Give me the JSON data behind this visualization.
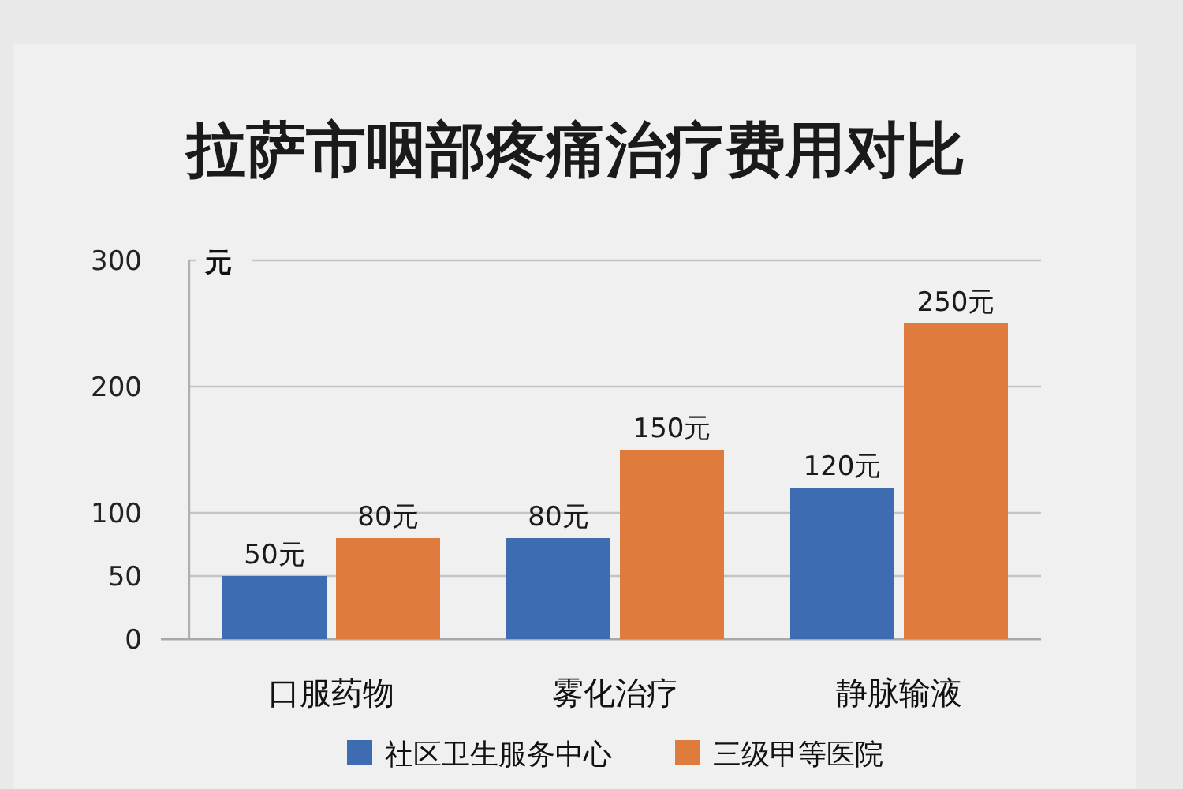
{
  "chart_data": {
    "type": "bar",
    "title": "拉萨市咽部疼痛治疗费用对比",
    "ylabel": "元",
    "categories": [
      "口服药物",
      "雾化治疗",
      "静脉输液"
    ],
    "series": [
      {
        "name": "社区卫生服务中心",
        "color": "#3d6db0",
        "values": [
          50,
          80,
          120
        ],
        "value_labels": [
          "50元",
          "80元",
          "120元"
        ]
      },
      {
        "name": "三级甲等医院",
        "color": "#df7c3d",
        "values": [
          80,
          150,
          250
        ],
        "value_labels": [
          "80元",
          "150元",
          "250元"
        ]
      }
    ],
    "ylim": [
      0,
      300
    ],
    "yticks": [
      0,
      50,
      100,
      200,
      300
    ],
    "grid": "y",
    "legend": "bottom"
  }
}
